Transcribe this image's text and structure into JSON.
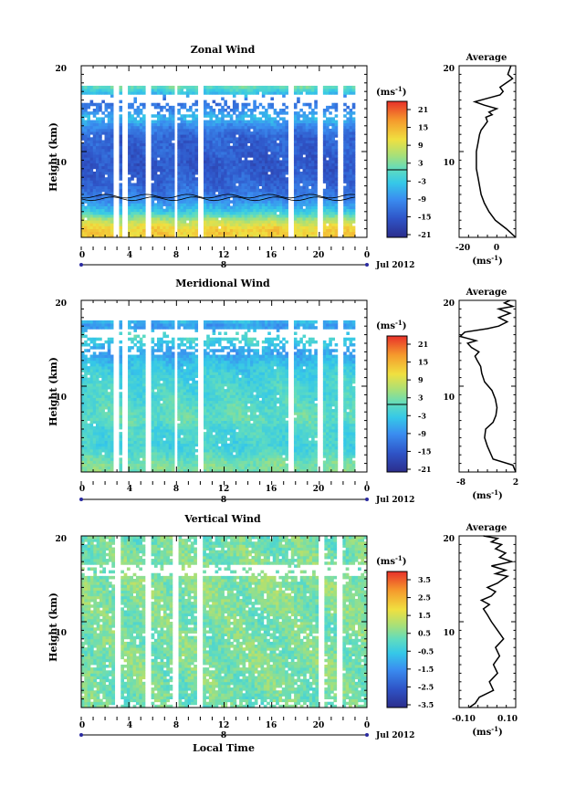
{
  "figure": {
    "date_label": "Jul 2012",
    "xlabel": "Local Time"
  },
  "panels": [
    {
      "title": "Zonal Wind",
      "ylabel": "Height (km)",
      "yticks": [
        "20",
        "10"
      ],
      "xticks": [
        "0",
        "4",
        "8",
        "12",
        "16",
        "20",
        "0"
      ],
      "day_label": "8",
      "colorbar": {
        "unit": "(ms",
        "unit_sup": "-1",
        "ticks": [
          "21",
          "15",
          "9",
          "3",
          "-3",
          "-9",
          "-15",
          "-21"
        ]
      },
      "profile": {
        "title": "Average",
        "yticks": [
          "20",
          "10"
        ],
        "xticks": [
          "-20",
          "0"
        ],
        "xunit": "(ms",
        "xunit_sup": "-1"
      }
    },
    {
      "title": "Meridional Wind",
      "ylabel": "Height (km)",
      "yticks": [
        "20",
        "10"
      ],
      "xticks": [
        "0",
        "4",
        "8",
        "12",
        "16",
        "20",
        "0"
      ],
      "day_label": "8",
      "colorbar": {
        "unit": "(ms",
        "unit_sup": "-1",
        "ticks": [
          "21",
          "15",
          "9",
          "3",
          "-3",
          "-9",
          "-15",
          "-21"
        ]
      },
      "profile": {
        "title": "Average",
        "yticks": [
          "20",
          "10"
        ],
        "xticks": [
          "-8",
          "2"
        ],
        "xunit": "(ms",
        "xunit_sup": "-1"
      }
    },
    {
      "title": "Vertical Wind",
      "ylabel": "Height (km)",
      "yticks": [
        "20",
        "10"
      ],
      "xticks": [
        "0",
        "4",
        "8",
        "12",
        "16",
        "20",
        "0"
      ],
      "day_label": "8",
      "colorbar": {
        "unit": "(ms",
        "unit_sup": "-1",
        "ticks": [
          "3.5",
          "2.5",
          "1.5",
          "0.5",
          "-0.5",
          "-1.5",
          "-2.5",
          "-3.5"
        ]
      },
      "profile": {
        "title": "Average",
        "yticks": [
          "20",
          "10"
        ],
        "xticks": [
          "-0.10",
          "0.10"
        ],
        "xunit": "(ms",
        "xunit_sup": "-1"
      }
    }
  ],
  "chart_data": [
    {
      "type": "heatmap",
      "title": "Zonal Wind",
      "xlabel": "",
      "ylabel": "Height (km)",
      "xlim": [
        0,
        24
      ],
      "ylim": [
        0,
        20
      ],
      "x_unit": "hours local time",
      "colorbar_range": [
        -24,
        24
      ],
      "data_columns_hours": [
        0,
        23
      ],
      "gaps_hours": [
        2.6,
        3.3,
        5.3,
        7.6,
        9.6,
        17.3,
        19.8,
        21.4
      ],
      "profile_by_height_km": [
        {
          "h": 1,
          "v": 12
        },
        {
          "h": 2,
          "v": 6
        },
        {
          "h": 3,
          "v": -4
        },
        {
          "h": 4,
          "v": -9
        },
        {
          "h": 5,
          "v": -13
        },
        {
          "h": 6,
          "v": -15
        },
        {
          "h": 7,
          "v": -16
        },
        {
          "h": 8,
          "v": -17
        },
        {
          "h": 9,
          "v": -17
        },
        {
          "h": 10,
          "v": -16
        },
        {
          "h": 11,
          "v": -16
        },
        {
          "h": 12,
          "v": -15
        },
        {
          "h": 13,
          "v": -11
        },
        {
          "h": 14,
          "v": -6
        },
        {
          "h": 15,
          "v": -12
        },
        {
          "h": 16,
          "v": -14
        },
        {
          "h": 16.5,
          "v": -8
        },
        {
          "h": 17,
          "v": -4
        },
        {
          "h": 18,
          "v": 4
        },
        {
          "h": 19,
          "v": 8
        },
        {
          "h": 20,
          "v": 6
        }
      ],
      "contour_heights_km": [
        4.5,
        4.8
      ]
    },
    {
      "type": "line",
      "title": "Average",
      "xlabel": "(ms-1)",
      "ylabel": "",
      "xlim": [
        -28,
        8
      ],
      "ylim": [
        0,
        20
      ],
      "series": [
        {
          "x": [
            8,
            2,
            -5,
            -9,
            -12,
            -14,
            -15,
            -16,
            -17,
            -17,
            -17,
            -16,
            -15,
            -14,
            -12,
            -10,
            -11,
            -7,
            -9,
            -4,
            -12,
            -18,
            -10,
            -2,
            0,
            -2,
            2,
            6,
            3,
            5
          ],
          "y": [
            0,
            1,
            2,
            3,
            4,
            5,
            6,
            7,
            8,
            9,
            10,
            11,
            12,
            12.5,
            13,
            13.5,
            14,
            14.3,
            14.6,
            15,
            15.4,
            15.8,
            16.2,
            16.6,
            17,
            17.5,
            18,
            18.5,
            19,
            20
          ]
        }
      ]
    },
    {
      "type": "heatmap",
      "title": "Meridional Wind",
      "xlabel": "",
      "ylabel": "Height (km)",
      "xlim": [
        0,
        24
      ],
      "ylim": [
        0,
        20
      ],
      "x_unit": "hours local time",
      "colorbar_range": [
        -24,
        24
      ],
      "data_columns_hours": [
        0,
        23
      ],
      "gaps_hours": [
        2.6,
        3.3,
        5.3,
        7.6,
        9.6,
        17.3,
        19.8,
        21.4
      ],
      "profile_by_height_km": [
        {
          "h": 1,
          "v": 2
        },
        {
          "h": 2,
          "v": -1
        },
        {
          "h": 3,
          "v": -3
        },
        {
          "h": 4,
          "v": -2
        },
        {
          "h": 5,
          "v": -2
        },
        {
          "h": 6,
          "v": 0
        },
        {
          "h": 7,
          "v": 0
        },
        {
          "h": 8,
          "v": -1
        },
        {
          "h": 9,
          "v": -2
        },
        {
          "h": 10,
          "v": -2
        },
        {
          "h": 11,
          "v": -3
        },
        {
          "h": 12,
          "v": -4
        },
        {
          "h": 13,
          "v": -6
        },
        {
          "h": 14,
          "v": -9
        },
        {
          "h": 15,
          "v": -4
        },
        {
          "h": 16,
          "v": -1
        },
        {
          "h": 17,
          "v": -10
        },
        {
          "h": 18,
          "v": -3
        },
        {
          "h": 19,
          "v": 1
        },
        {
          "h": 20,
          "v": 3
        }
      ]
    },
    {
      "type": "line",
      "title": "Average",
      "xlabel": "(ms-1)",
      "ylabel": "",
      "xlim": [
        -8,
        2
      ],
      "ylim": [
        0,
        20
      ],
      "series": [
        {
          "x": [
            2,
            1.5,
            -2,
            -3,
            -3.5,
            -3.3,
            -2,
            -1.5,
            -1.3,
            -1.6,
            -2.2,
            -3.5,
            -4,
            -4.2,
            -4.8,
            -5.2,
            -4.5,
            -5.8,
            -6.5,
            -5,
            -7.8,
            -7,
            -3,
            -1,
            0.5,
            -1,
            1,
            -1,
            1.5,
            0,
            1
          ],
          "y": [
            0,
            0.8,
            1.5,
            3,
            4,
            5,
            5.8,
            6.6,
            7.5,
            8.5,
            9.5,
            10.5,
            11.5,
            12.3,
            13,
            13.5,
            14,
            14.5,
            15,
            15.3,
            15.8,
            16.3,
            16.7,
            17,
            17.5,
            18,
            18.5,
            19,
            19.3,
            19.7,
            20
          ]
        }
      ]
    },
    {
      "type": "heatmap",
      "title": "Vertical Wind",
      "xlabel": "Local Time",
      "ylabel": "Height (km)",
      "xlim": [
        0,
        24
      ],
      "ylim": [
        0,
        20
      ],
      "x_unit": "hours local time",
      "colorbar_range": [
        -4,
        4
      ],
      "data_columns_hours": [
        0,
        24
      ],
      "gaps_hours": [
        2.8,
        5.3,
        7.6,
        9.6,
        19.8,
        21.4
      ],
      "gap_heights_km": [
        15.2,
        16.6
      ],
      "profile_by_height_km": [
        {
          "h": 1,
          "v": 0.2
        },
        {
          "h": 5,
          "v": 0.4
        },
        {
          "h": 10,
          "v": 0.3
        },
        {
          "h": 15,
          "v": 0.5
        },
        {
          "h": 20,
          "v": 0.2
        }
      ]
    },
    {
      "type": "line",
      "title": "Average",
      "xlabel": "(ms-1)",
      "ylabel": "",
      "xlim": [
        -0.14,
        0.14
      ],
      "ylim": [
        0,
        20
      ],
      "series": [
        {
          "x": [
            -0.09,
            -0.06,
            -0.04,
            0.03,
            0.01,
            0.05,
            0.03,
            0.06,
            0.04,
            0.08,
            0.05,
            0.02,
            0.0,
            -0.02,
            0.01,
            -0.03,
            0.02,
            0.04,
            0.0,
            0.05,
            0.08,
            0.1,
            0.04,
            0.09,
            0.02,
            0.12,
            0.06,
            0.09,
            0.04,
            0.07,
            0.02,
            0.05,
            -0.02
          ],
          "y": [
            0,
            0.5,
            1.2,
            2,
            3,
            4,
            5,
            6,
            7,
            8,
            9,
            10,
            10.8,
            11.5,
            12,
            12.5,
            13,
            13.5,
            14,
            14.5,
            15,
            15.3,
            15.6,
            16,
            16.5,
            17,
            17.5,
            18,
            18.5,
            19,
            19.3,
            19.7,
            20
          ]
        }
      ]
    }
  ]
}
